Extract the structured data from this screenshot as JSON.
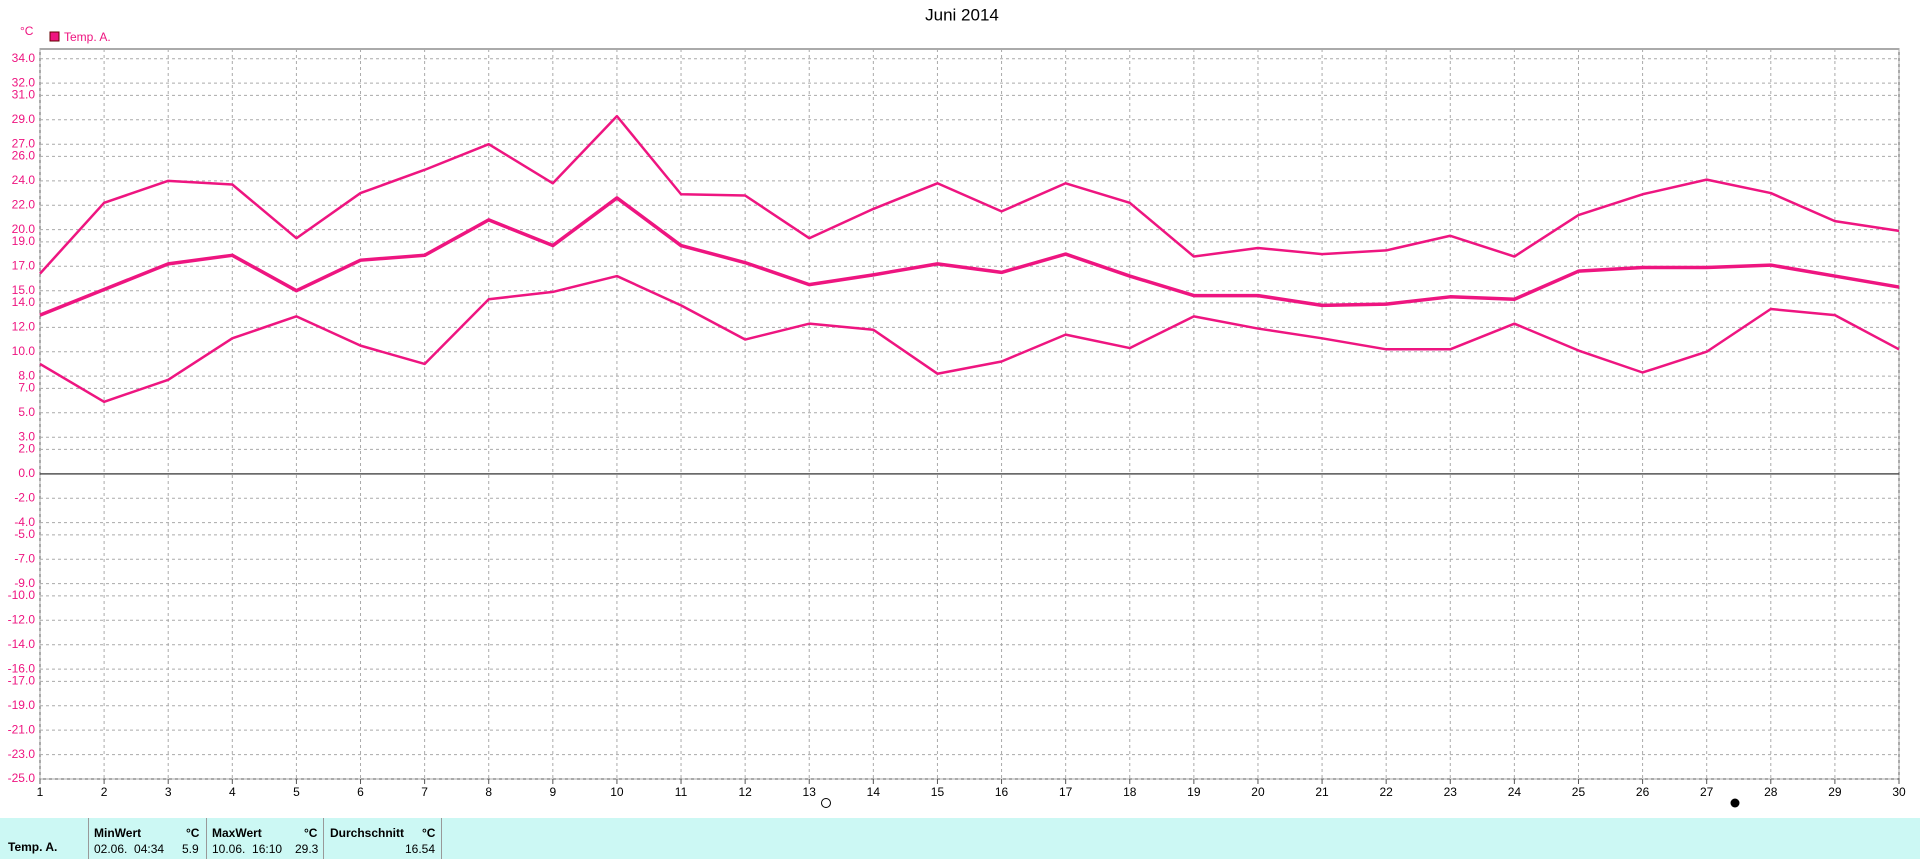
{
  "chart_data": {
    "type": "line",
    "title": "Juni 2014",
    "y_unit": "°C",
    "x": [
      1,
      2,
      3,
      4,
      5,
      6,
      7,
      8,
      9,
      10,
      11,
      12,
      13,
      14,
      15,
      16,
      17,
      18,
      19,
      20,
      21,
      22,
      23,
      24,
      25,
      26,
      27,
      28,
      29,
      30
    ],
    "series": [
      {
        "name": "Temp. A.",
        "color": "#ee1580",
        "values": [
          13.0,
          15.1,
          17.2,
          17.9,
          15.0,
          17.5,
          17.9,
          20.8,
          18.7,
          22.6,
          18.7,
          17.3,
          15.5,
          16.3,
          17.2,
          16.5,
          18.0,
          16.2,
          14.6,
          14.6,
          13.8,
          13.9,
          14.5,
          14.3,
          16.6,
          16.9,
          16.9,
          17.1,
          16.2,
          15.3
        ]
      },
      {
        "color": "#ee1580",
        "values": [
          16.4,
          22.2,
          24.0,
          23.7,
          19.3,
          23.0,
          24.9,
          27.0,
          23.8,
          29.3,
          22.9,
          22.8,
          19.3,
          21.7,
          23.8,
          21.5,
          23.8,
          22.2,
          17.8,
          18.5,
          18.0,
          18.3,
          19.5,
          17.8,
          21.2,
          22.9,
          24.1,
          23.0,
          20.7,
          19.9
        ]
      },
      {
        "color": "#ee1580",
        "values": [
          9.0,
          5.9,
          7.7,
          11.1,
          12.9,
          10.5,
          9.0,
          14.3,
          14.9,
          16.2,
          13.8,
          11.0,
          12.3,
          11.8,
          8.2,
          9.2,
          11.4,
          10.3,
          12.9,
          11.9,
          11.1,
          10.2,
          10.2,
          12.3,
          10.1,
          8.3,
          10.0,
          13.5,
          13.0,
          10.2
        ]
      }
    ],
    "xlim": [
      1,
      30
    ],
    "xticks": [
      1,
      2,
      3,
      4,
      5,
      6,
      7,
      8,
      9,
      10,
      11,
      12,
      13,
      14,
      15,
      16,
      17,
      18,
      19,
      20,
      21,
      22,
      23,
      24,
      25,
      26,
      27,
      28,
      29,
      30
    ],
    "ylim": [
      -25,
      34.8
    ],
    "yticks": [
      {
        "value": 34,
        "label": "34.0"
      },
      {
        "value": 32,
        "label": "32.0"
      },
      {
        "value": 31,
        "label": "31.0"
      },
      {
        "value": 29,
        "label": "29.0"
      },
      {
        "value": 27,
        "label": "27.0"
      },
      {
        "value": 26,
        "label": "26.0"
      },
      {
        "value": 24,
        "label": "24.0"
      },
      {
        "value": 22,
        "label": "22.0"
      },
      {
        "value": 20,
        "label": "20.0"
      },
      {
        "value": 19,
        "label": "19.0"
      },
      {
        "value": 17,
        "label": "17.0"
      },
      {
        "value": 15,
        "label": "15.0"
      },
      {
        "value": 14,
        "label": "14.0"
      },
      {
        "value": 12,
        "label": "12.0"
      },
      {
        "value": 10,
        "label": "10.0"
      },
      {
        "value": 8,
        "label": "8.0"
      },
      {
        "value": 7,
        "label": "7.0"
      },
      {
        "value": 5,
        "label": "5.0"
      },
      {
        "value": 3,
        "label": "3.0"
      },
      {
        "value": 2,
        "label": "2.0"
      },
      {
        "value": 0,
        "label": "0.0"
      },
      {
        "value": -2,
        "label": "-2.0"
      },
      {
        "value": -4,
        "label": "-4.0"
      },
      {
        "value": -5,
        "label": "-5.0"
      },
      {
        "value": -7,
        "label": "-7.0"
      },
      {
        "value": -9,
        "label": "-9.0"
      },
      {
        "value": -10,
        "label": "-10.0"
      },
      {
        "value": -12,
        "label": "-12.0"
      },
      {
        "value": -14,
        "label": "-14.0"
      },
      {
        "value": -16,
        "label": "-16.0"
      },
      {
        "value": -17,
        "label": "-17.0"
      },
      {
        "value": -19,
        "label": "-19.0"
      },
      {
        "value": -21,
        "label": "-21.0"
      },
      {
        "value": -23,
        "label": "-23.0"
      },
      {
        "value": -25,
        "label": "-25.0"
      }
    ],
    "grid": true
  },
  "stats": {
    "row_label": "Temp. A.",
    "columns": [
      {
        "header": "MinWert",
        "unit": "°C",
        "time": "02.06.  04:34",
        "value": 5.9
      },
      {
        "header": "MaxWert",
        "unit": "°C",
        "time": "10.06.  16:10",
        "value": 29.3
      },
      {
        "header": "Durchschnitt",
        "unit": "°C",
        "value": 16.54
      }
    ]
  }
}
